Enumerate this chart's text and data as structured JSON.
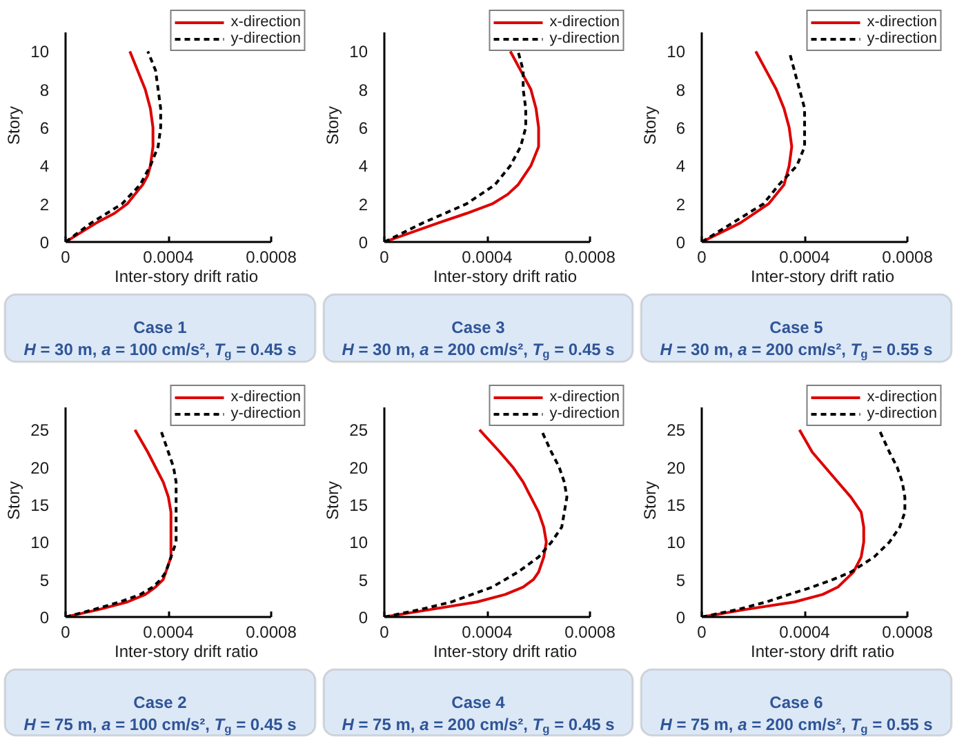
{
  "chart_data": [
    {
      "type": "line",
      "title": "Case 1",
      "subtitle": "H = 30 m, a = 100 cm/s², T$_{g}$ = 0.45 s",
      "xlabel": "Inter-story drift ratio",
      "ylabel": "Story",
      "xlim": [
        0,
        0.0008
      ],
      "xticks": [
        0,
        0.0004,
        0.0008
      ],
      "ylim": [
        0,
        11
      ],
      "yticks": [
        0,
        2,
        4,
        6,
        8,
        10
      ],
      "grid": false,
      "legend": "top right",
      "series": [
        {
          "name": "x-direction",
          "color": "#dd0000",
          "line_style": "solid",
          "x": [
            0,
            6e-05,
            0.00012,
            0.00019,
            0.00024,
            0.00027,
            0.0003,
            0.00032,
            0.00033,
            0.00034,
            0.00034,
            0.00033,
            0.00031,
            0.00028,
            0.00025
          ],
          "values": [
            0,
            0.5,
            1,
            1.5,
            2,
            2.5,
            3,
            3.5,
            4,
            5,
            6,
            7,
            8,
            9,
            10
          ]
        },
        {
          "name": "y-direction",
          "color": "#000000",
          "line_style": "dashed",
          "x": [
            0,
            0.0001,
            0.00022,
            0.00029,
            0.00033,
            0.00036,
            0.00037,
            0.00037,
            0.00036,
            0.00035,
            0.00032
          ],
          "values": [
            0,
            1,
            2,
            3,
            4,
            5,
            6,
            7,
            8,
            9,
            10
          ]
        }
      ]
    },
    {
      "type": "line",
      "title": "Case 3",
      "subtitle": "H = 30 m, a = 200 cm/s², T$_{g}$ = 0.45 s",
      "xlabel": "Inter-story drift ratio",
      "ylabel": "Story",
      "xlim": [
        0,
        0.0008
      ],
      "xticks": [
        0,
        0.0004,
        0.0008
      ],
      "ylim": [
        0,
        11
      ],
      "yticks": [
        0,
        2,
        4,
        6,
        8,
        10
      ],
      "grid": false,
      "legend": "top right",
      "series": [
        {
          "name": "x-direction",
          "color": "#dd0000",
          "line_style": "solid",
          "x": [
            0,
            0.00021,
            0.00032,
            0.00042,
            0.00048,
            0.00052,
            0.00057,
            0.0006,
            0.0006,
            0.00059,
            0.00057,
            0.00053,
            0.00049
          ],
          "values": [
            0,
            1,
            1.5,
            2,
            2.5,
            3,
            4,
            5,
            6,
            7,
            8,
            9,
            10
          ]
        },
        {
          "name": "y-direction",
          "color": "#000000",
          "line_style": "dashed",
          "x": [
            0,
            0.00015,
            0.00032,
            0.00043,
            0.00049,
            0.00053,
            0.00055,
            0.00055,
            0.00054,
            0.00054,
            0.00052
          ],
          "values": [
            0,
            1,
            2,
            3,
            4,
            5,
            6,
            7,
            8,
            9,
            10
          ]
        }
      ]
    },
    {
      "type": "line",
      "title": "Case 5",
      "subtitle": "H = 30 m, a = 200 cm/s², T$_{g}$ = 0.55 s",
      "xlabel": "Inter-story drift ratio",
      "ylabel": "Story",
      "xlim": [
        0,
        0.0008
      ],
      "xticks": [
        0,
        0.0004,
        0.0008
      ],
      "ylim": [
        0,
        11
      ],
      "yticks": [
        0,
        2,
        4,
        6,
        8,
        10
      ],
      "grid": false,
      "legend": "top right",
      "series": [
        {
          "name": "x-direction",
          "color": "#dd0000",
          "line_style": "solid",
          "x": [
            0,
            0.00015,
            0.00026,
            0.00032,
            0.00034,
            0.00035,
            0.00034,
            0.00032,
            0.00029,
            0.00025,
            0.00021
          ],
          "values": [
            0,
            1,
            2,
            3,
            4,
            5,
            6,
            7,
            8,
            9,
            10
          ]
        },
        {
          "name": "y-direction",
          "color": "#000000",
          "line_style": "dashed",
          "x": [
            0,
            0.00012,
            0.00024,
            0.0003,
            0.00037,
            0.0004,
            0.0004,
            0.0004,
            0.00038,
            0.00036,
            0.00034
          ],
          "values": [
            0,
            1,
            2,
            3,
            4,
            5,
            6,
            7,
            8,
            9,
            10
          ]
        }
      ]
    },
    {
      "type": "line",
      "title": "Case 2",
      "subtitle": "H = 75 m, a = 100 cm/s², T$_{g}$ = 0.45 s",
      "xlabel": "Inter-story drift ratio",
      "ylabel": "Story",
      "xlim": [
        0,
        0.0008
      ],
      "xticks": [
        0,
        0.0004,
        0.0008
      ],
      "ylim": [
        0,
        28
      ],
      "yticks": [
        0,
        5,
        10,
        15,
        20,
        25
      ],
      "grid": false,
      "legend": "top right",
      "series": [
        {
          "name": "x-direction",
          "color": "#dd0000",
          "line_style": "solid",
          "x": [
            0,
            0.00013,
            0.00024,
            0.00031,
            0.00035,
            0.00038,
            0.00039,
            0.00041,
            0.00041,
            0.00041,
            0.00041,
            0.0004,
            0.00038,
            0.00035,
            0.00032,
            0.00027
          ],
          "values": [
            0,
            1,
            2,
            3,
            4,
            5,
            6,
            8,
            10,
            12,
            14,
            16,
            18,
            20,
            22,
            25
          ]
        },
        {
          "name": "y-direction",
          "color": "#000000",
          "line_style": "dashed",
          "x": [
            0,
            0.00011,
            0.00021,
            0.00029,
            0.00034,
            0.00037,
            0.00039,
            0.00041,
            0.00043,
            0.00043,
            0.00043,
            0.00043,
            0.00043,
            0.00042,
            0.0004,
            0.00037
          ],
          "values": [
            0,
            1,
            2,
            3,
            4,
            5,
            6,
            8,
            10,
            12,
            14,
            16,
            18,
            20,
            22,
            25
          ]
        }
      ]
    },
    {
      "type": "line",
      "title": "Case 4",
      "subtitle": "H = 75 m, a = 200 cm/s², T$_{g}$ = 0.45 s",
      "xlabel": "Inter-story drift ratio",
      "ylabel": "Story",
      "xlim": [
        0,
        0.0008
      ],
      "xticks": [
        0,
        0.0004,
        0.0008
      ],
      "ylim": [
        0,
        28
      ],
      "yticks": [
        0,
        5,
        10,
        15,
        20,
        25
      ],
      "grid": false,
      "legend": "top right",
      "series": [
        {
          "name": "x-direction",
          "color": "#dd0000",
          "line_style": "solid",
          "x": [
            0,
            0.00018,
            0.00036,
            0.00047,
            0.00054,
            0.00058,
            0.0006,
            0.00062,
            0.00063,
            0.00062,
            0.0006,
            0.00057,
            0.00054,
            0.0005,
            0.00045,
            0.00037
          ],
          "values": [
            0,
            1,
            2,
            3,
            4,
            5,
            6,
            8,
            10,
            12,
            14,
            16,
            18,
            20,
            22,
            25
          ]
        },
        {
          "name": "y-direction",
          "color": "#000000",
          "line_style": "dashed",
          "x": [
            0,
            0.00014,
            0.00026,
            0.00034,
            0.00042,
            0.00047,
            0.00052,
            0.0006,
            0.00065,
            0.00069,
            0.0007,
            0.00071,
            0.0007,
            0.00068,
            0.00065,
            0.00061
          ],
          "values": [
            0,
            1,
            2,
            3,
            4,
            5,
            6,
            8,
            10,
            12,
            14,
            16,
            18,
            20,
            22,
            25
          ]
        }
      ]
    },
    {
      "type": "line",
      "title": "Case 6",
      "subtitle": "H = 75 m, a = 200 cm/s², T$_{g}$ = 0.55 s",
      "xlabel": "Inter-story drift ratio",
      "ylabel": "Story",
      "xlim": [
        0,
        0.0008
      ],
      "xticks": [
        0,
        0.0004,
        0.0008
      ],
      "ylim": [
        0,
        28
      ],
      "yticks": [
        0,
        5,
        10,
        15,
        20,
        25
      ],
      "grid": false,
      "legend": "top right",
      "series": [
        {
          "name": "x-direction",
          "color": "#dd0000",
          "line_style": "solid",
          "x": [
            0,
            0.00017,
            0.00036,
            0.00047,
            0.00053,
            0.00056,
            0.00059,
            0.00062,
            0.00063,
            0.00063,
            0.00062,
            0.00058,
            0.00053,
            0.00048,
            0.00043,
            0.00038
          ],
          "values": [
            0,
            1,
            2,
            3,
            4,
            5,
            6,
            8,
            10,
            12,
            14,
            16,
            18,
            20,
            22,
            25
          ]
        },
        {
          "name": "y-direction",
          "color": "#000000",
          "line_style": "dashed",
          "x": [
            0,
            0.00014,
            0.00025,
            0.00034,
            0.00043,
            0.00051,
            0.00058,
            0.00067,
            0.00073,
            0.00077,
            0.00079,
            0.00079,
            0.00078,
            0.00076,
            0.00073,
            0.00069
          ],
          "values": [
            0,
            1,
            2,
            3,
            4,
            5,
            6,
            8,
            10,
            12,
            14,
            16,
            18,
            20,
            22,
            25
          ]
        }
      ]
    }
  ]
}
